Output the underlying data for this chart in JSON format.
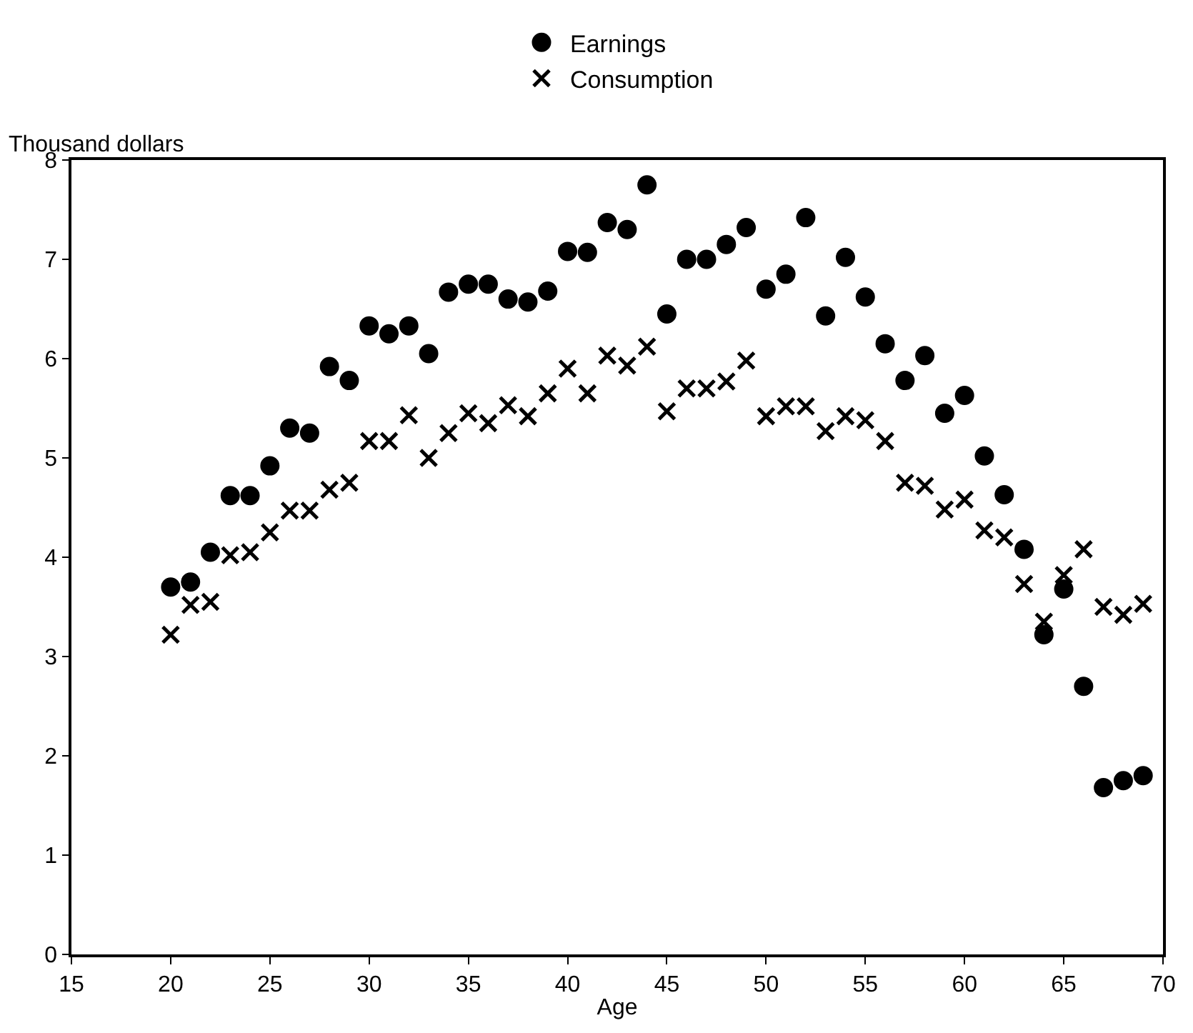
{
  "chart_data": {
    "type": "scatter",
    "xlabel": "Age",
    "ylabel": "Thousand dollars",
    "x": [
      20,
      21,
      22,
      23,
      24,
      25,
      26,
      27,
      28,
      29,
      30,
      31,
      32,
      33,
      34,
      35,
      36,
      37,
      38,
      39,
      40,
      41,
      42,
      43,
      44,
      45,
      46,
      47,
      48,
      49,
      50,
      51,
      52,
      53,
      54,
      55,
      56,
      57,
      58,
      59,
      60,
      61,
      62,
      63,
      64,
      65,
      66,
      67,
      68,
      69
    ],
    "series": [
      {
        "name": "Earnings",
        "color": "#000000",
        "marker": "circle",
        "values": [
          3.7,
          3.75,
          4.05,
          4.62,
          4.62,
          4.92,
          5.3,
          5.25,
          5.92,
          5.78,
          6.33,
          6.25,
          6.33,
          6.05,
          6.67,
          6.75,
          6.75,
          6.6,
          6.57,
          6.68,
          7.08,
          7.07,
          7.37,
          7.3,
          7.75,
          6.45,
          7.0,
          7.0,
          7.15,
          7.32,
          6.7,
          6.85,
          7.42,
          6.43,
          7.02,
          6.62,
          6.15,
          5.78,
          6.03,
          5.45,
          5.63,
          5.02,
          4.63,
          4.08,
          3.22,
          3.68,
          2.7,
          1.68,
          1.75,
          1.8
        ]
      },
      {
        "name": "Consumption",
        "color": "#000000",
        "marker": "cross",
        "values": [
          3.22,
          3.52,
          3.55,
          4.02,
          4.05,
          4.25,
          4.47,
          4.47,
          4.68,
          4.75,
          5.17,
          5.17,
          5.43,
          5.0,
          5.25,
          5.45,
          5.35,
          5.53,
          5.42,
          5.65,
          5.9,
          5.65,
          6.03,
          5.93,
          6.12,
          5.47,
          5.7,
          5.7,
          5.77,
          5.98,
          5.42,
          5.52,
          5.52,
          5.27,
          5.42,
          5.38,
          5.17,
          4.75,
          4.72,
          4.48,
          4.58,
          4.27,
          4.2,
          3.73,
          3.35,
          3.82,
          4.08,
          3.5,
          3.42,
          3.53
        ]
      }
    ],
    "xlim": [
      15,
      70
    ],
    "xticks": [
      15,
      20,
      25,
      30,
      35,
      40,
      45,
      50,
      55,
      60,
      65,
      70
    ],
    "ylim": [
      0,
      8
    ],
    "yticks": [
      0,
      1,
      2,
      3,
      4,
      5,
      6,
      7,
      8
    ],
    "legend": "top"
  }
}
